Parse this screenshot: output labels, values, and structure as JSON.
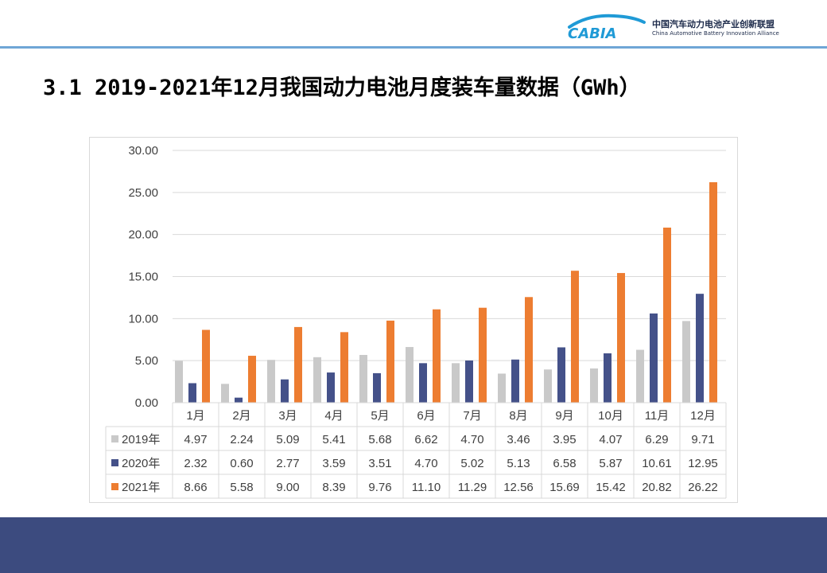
{
  "slide": {
    "title": "3.1 2019-2021年12月我国动力电池月度装车量数据（GWh）"
  },
  "logo": {
    "mark_text": "CABIA",
    "name_cn": "中国汽车动力电池产业创新联盟",
    "name_en": "China Automotive Battery Innovation Alliance"
  },
  "colors": {
    "s2019": "#c9c9c9",
    "s2020": "#445189",
    "s2021": "#ed7d31",
    "footer": "#3c4b7f",
    "accent_line": "#6fa6d6"
  },
  "chart_data": {
    "type": "bar",
    "title": "",
    "xlabel": "",
    "ylabel": "",
    "ylim": [
      0,
      30
    ],
    "yticks": [
      "0.00",
      "5.00",
      "10.00",
      "15.00",
      "20.00",
      "25.00",
      "30.00"
    ],
    "grid": true,
    "legend": "data-table-left",
    "categories": [
      "1月",
      "2月",
      "3月",
      "4月",
      "5月",
      "6月",
      "7月",
      "8月",
      "9月",
      "10月",
      "11月",
      "12月"
    ],
    "series": [
      {
        "name": "2019年",
        "color": "#c9c9c9",
        "values": [
          4.97,
          2.24,
          5.09,
          5.41,
          5.68,
          6.62,
          4.7,
          3.46,
          3.95,
          4.07,
          6.29,
          9.71
        ],
        "labels": [
          "4.97",
          "2.24",
          "5.09",
          "5.41",
          "5.68",
          "6.62",
          "4.70",
          "3.46",
          "3.95",
          "4.07",
          "6.29",
          "9.71"
        ]
      },
      {
        "name": "2020年",
        "color": "#445189",
        "values": [
          2.32,
          0.6,
          2.77,
          3.59,
          3.51,
          4.7,
          5.02,
          5.13,
          6.58,
          5.87,
          10.61,
          12.95
        ],
        "labels": [
          "2.32",
          "0.60",
          "2.77",
          "3.59",
          "3.51",
          "4.70",
          "5.02",
          "5.13",
          "6.58",
          "5.87",
          "10.61",
          "12.95"
        ]
      },
      {
        "name": "2021年",
        "color": "#ed7d31",
        "values": [
          8.66,
          5.58,
          9.0,
          8.39,
          9.76,
          11.1,
          11.29,
          12.56,
          15.69,
          15.42,
          20.82,
          26.22
        ],
        "labels": [
          "8.66",
          "5.58",
          "9.00",
          "8.39",
          "9.76",
          "11.10",
          "11.29",
          "12.56",
          "15.69",
          "15.42",
          "20.82",
          "26.22"
        ]
      }
    ]
  }
}
